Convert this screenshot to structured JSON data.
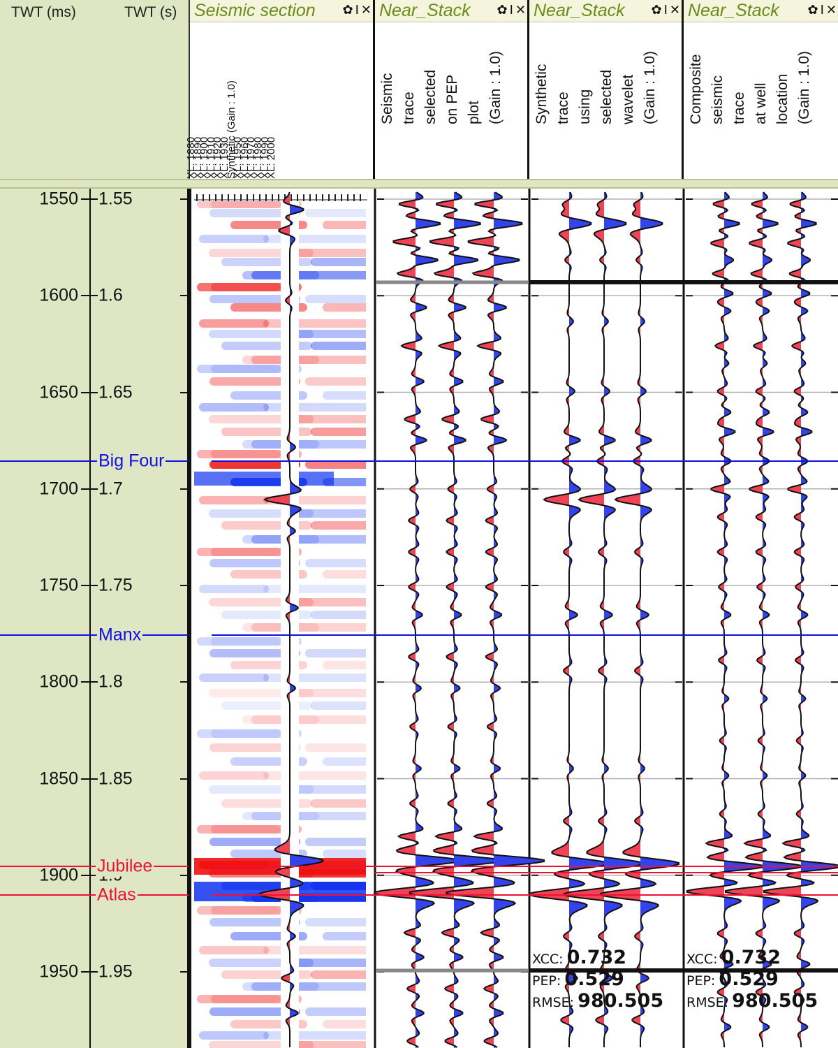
{
  "axis": {
    "ms_label": "TWT (ms)",
    "s_label": "TWT (s)",
    "ticks_ms": [
      "1550",
      "1600",
      "1650",
      "1700",
      "1750",
      "1800",
      "1850",
      "1900",
      "1950"
    ],
    "ticks_s": [
      "1.55",
      "1.6",
      "1.65",
      "1.7",
      "1.75",
      "1.8",
      "1.85",
      "1.9",
      "1.95"
    ]
  },
  "tracks": [
    {
      "title": "Seismic section",
      "lines": [
        "XL: 1880",
        "XL: 1890",
        "XL: 1900",
        "XL: 1910",
        "XL: 1920",
        "XL: 1930",
        "Synthetic (Gain : 1.0)",
        "XL: 1950",
        "XL: 1960",
        "XL: 1970",
        "XL: 1980",
        "XL: 1990",
        "XL: 2000"
      ]
    },
    {
      "title": "Near_Stack",
      "lines": [
        "Seismic",
        "trace",
        "selected",
        "on PEP",
        "plot",
        "(Gain : 1.0)"
      ]
    },
    {
      "title": "Near_Stack",
      "lines": [
        "Synthetic",
        "trace",
        "using",
        "selected",
        "wavelet",
        "(Gain : 1.0)"
      ]
    },
    {
      "title": "Near_Stack",
      "lines": [
        "Composite",
        "seismic",
        "trace",
        "at well",
        "location",
        "(Gain : 1.0)"
      ]
    }
  ],
  "controls": {
    "settings": "✿",
    "pin": "I",
    "close": "✕"
  },
  "horizons": [
    {
      "name": "Big Four",
      "color": "#1010e0"
    },
    {
      "name": "Manx",
      "color": "#1010e0"
    },
    {
      "name": "Jubilee",
      "color": "#ee1133"
    },
    {
      "name": "Atlas",
      "color": "#ee1133"
    }
  ],
  "stats": [
    {
      "xcc_label": "XCC:",
      "xcc": "0.732",
      "pep_label": "PEP:",
      "pep": "0.529",
      "rmse_label": "RMSE:",
      "rmse": "980.505"
    },
    {
      "xcc_label": "XCC:",
      "xcc": "0.732",
      "pep_label": "PEP:",
      "pep": "0.529",
      "rmse_label": "RMSE:",
      "rmse": "980.505"
    }
  ],
  "colors": {
    "panel": "#dfe6c4",
    "positive_fill": "#ee4455",
    "negative_fill": "#3344ee",
    "title_text": "#6a8a1a"
  }
}
